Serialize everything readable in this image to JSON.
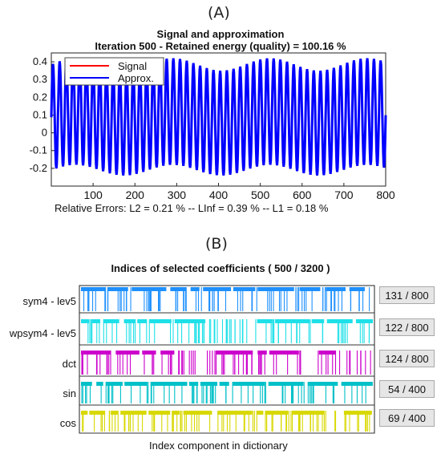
{
  "panels": {
    "a_label": "(A)",
    "b_label": "(B)"
  },
  "chart_data": [
    {
      "type": "line",
      "title": "Signal and approximation",
      "subtitle": "Iteration 500 - Retained energy (quality) = 100.16 %",
      "xlim": [
        0,
        800
      ],
      "ylim": [
        -0.3,
        0.45
      ],
      "x_ticks": [
        100,
        200,
        300,
        400,
        500,
        600,
        700,
        800
      ],
      "y_ticks": [
        -0.2,
        -0.1,
        0,
        0.1,
        0.2,
        0.3,
        0.4
      ],
      "x_tick_labels": [
        "100",
        "200",
        "300",
        "400",
        "500",
        "600",
        "700",
        "800"
      ],
      "y_tick_labels": [
        "-0.2",
        "-0.1",
        "0",
        "0.1",
        "0.2",
        "0.3",
        "0.4"
      ],
      "legend": [
        "Signal",
        "Approx."
      ],
      "legend_placement": "top-left",
      "series": [
        {
          "name": "Signal",
          "color": "#ff0000",
          "period_samples": 16,
          "peak_y": [
            0.42,
            0.35
          ],
          "trough_y": [
            -0.24,
            -0.18
          ]
        },
        {
          "name": "Approx.",
          "color": "#0000ff",
          "period_samples": 16,
          "peak_y": [
            0.42,
            0.35
          ],
          "trough_y": [
            -0.24,
            -0.18
          ]
        }
      ],
      "caption": "Relative Errors:   L2 = 0.21 % --  LInf = 0.39 %  --  L1 = 0.18 %"
    },
    {
      "type": "scatter",
      "title": "Indices of selected coefficients ( 500 / 3200 )",
      "xlabel": "Index component in dictionary",
      "rows": [
        {
          "label": "sym4 - lev5",
          "count": "131 / 800",
          "color": "#1e90ff",
          "density": 0.165
        },
        {
          "label": "wpsym4 - lev5",
          "count": "122 / 800",
          "color": "#1ee0e8",
          "density": 0.155
        },
        {
          "label": "dct",
          "count": "124 / 800",
          "color": "#cc00cc",
          "density": 0.155
        },
        {
          "label": "sin",
          "count": "54 / 400",
          "color": "#00c0c8",
          "density": 0.14
        },
        {
          "label": "cos",
          "count": "69 / 400",
          "color": "#d8d800",
          "density": 0.17
        }
      ]
    }
  ]
}
